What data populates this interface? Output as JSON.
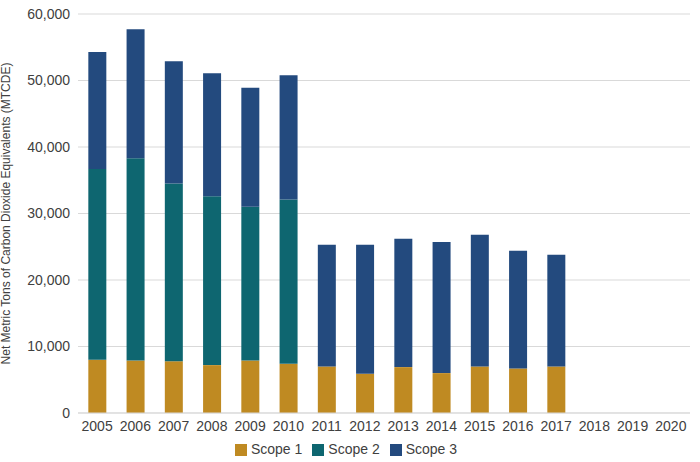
{
  "chart_data": {
    "type": "bar",
    "stacked": true,
    "grid": true,
    "legend": "bottom",
    "ylabel": "Net Metric Tons of Carbon Dioxide Equivalents (MTCDE)",
    "categories": [
      "2005",
      "2006",
      "2007",
      "2008",
      "2009",
      "2010",
      "2011",
      "2012",
      "2013",
      "2014",
      "2015",
      "2016",
      "2017",
      "2018",
      "2019",
      "2020"
    ],
    "ylim": [
      0,
      60000
    ],
    "yticks": [
      0,
      {
        "value": 10000,
        "label": "10,000"
      },
      {
        "value": 20000,
        "label": "20,000"
      },
      {
        "value": 30000,
        "label": "30,000"
      },
      {
        "value": 40000,
        "label": "40,000"
      },
      {
        "value": 50000,
        "label": "50,000"
      },
      {
        "value": 60000,
        "label": "60,000"
      }
    ],
    "series": [
      {
        "name": "Scope 1",
        "color": "#bf8a22",
        "values": [
          8000,
          7900,
          7800,
          7200,
          7900,
          7400,
          7000,
          5900,
          6900,
          6000,
          7000,
          6700,
          7000,
          null,
          null,
          null
        ]
      },
      {
        "name": "Scope 2",
        "color": "#0e6670",
        "values": [
          28700,
          30400,
          26700,
          25400,
          23100,
          24700,
          null,
          null,
          null,
          null,
          null,
          null,
          null,
          null,
          null,
          null
        ]
      },
      {
        "name": "Scope 3",
        "color": "#234a7e",
        "values": [
          17600,
          19400,
          18400,
          18500,
          17900,
          18700,
          18300,
          19400,
          19300,
          19700,
          19800,
          17700,
          16800,
          null,
          null,
          null
        ]
      }
    ]
  }
}
